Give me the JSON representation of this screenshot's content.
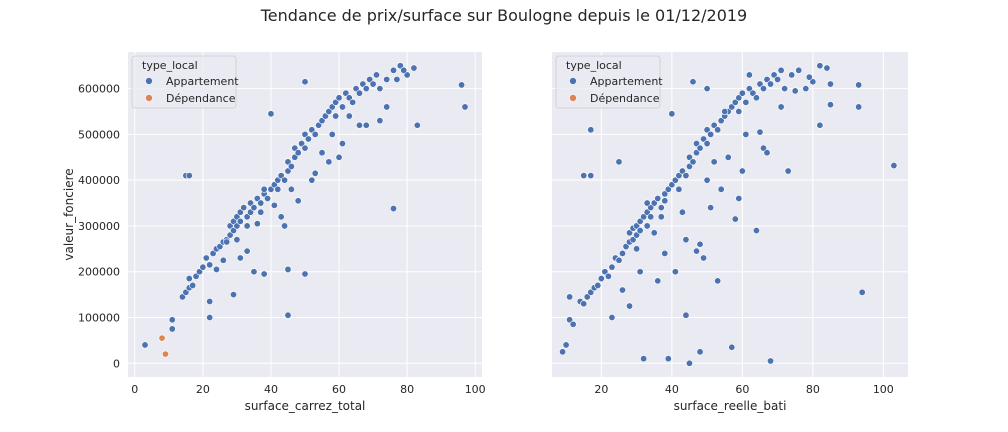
{
  "suptitle": "Tendance de prix/surface sur Boulogne depuis le 01/12/2019",
  "colors": {
    "Appartement": "#4c72b0",
    "Dépendance": "#dd8452",
    "panel_bg": "#eaeaf2",
    "grid": "#ffffff"
  },
  "chart_data": [
    {
      "type": "scatter",
      "xlabel": "surface_carrez_total",
      "ylabel": "valeur_fonciere",
      "xlim": [
        -2,
        102
      ],
      "ylim": [
        -30000,
        680000
      ],
      "xticks": [
        0,
        20,
        40,
        60,
        80,
        100
      ],
      "yticks": [
        0,
        100000,
        200000,
        300000,
        400000,
        500000,
        600000
      ],
      "grid": true,
      "legend": {
        "title": "type_local",
        "placement": "top-left",
        "entries": [
          "Appartement",
          "Dépendance"
        ]
      },
      "series": [
        {
          "name": "Appartement",
          "x": [
            3,
            11,
            11,
            14,
            15,
            16,
            16,
            17,
            18,
            19,
            20,
            21,
            22,
            23,
            24,
            25,
            26,
            27,
            28,
            28,
            29,
            29,
            30,
            30,
            31,
            31,
            32,
            33,
            33,
            34,
            34,
            35,
            36,
            37,
            37,
            38,
            38,
            39,
            40,
            41,
            42,
            42,
            43,
            44,
            45,
            45,
            46,
            47,
            47,
            48,
            49,
            50,
            50,
            51,
            52,
            53,
            54,
            55,
            56,
            57,
            58,
            59,
            59,
            60,
            61,
            62,
            63,
            64,
            65,
            66,
            67,
            68,
            69,
            70,
            71,
            72,
            74,
            76,
            78,
            80,
            82,
            96,
            97,
            15,
            16,
            40,
            50,
            76,
            45,
            50,
            22,
            22,
            29,
            35,
            45,
            60,
            83,
            27,
            33,
            43,
            55,
            58,
            63,
            66,
            72,
            79,
            31,
            38,
            44,
            48,
            52,
            57,
            24,
            26,
            30,
            36,
            41,
            46,
            53,
            61,
            68,
            74,
            77
          ],
          "y": [
            40000,
            75000,
            95000,
            145000,
            155000,
            165000,
            185000,
            170000,
            190000,
            200000,
            210000,
            230000,
            215000,
            240000,
            250000,
            255000,
            265000,
            270000,
            280000,
            300000,
            290000,
            310000,
            320000,
            300000,
            330000,
            310000,
            340000,
            320000,
            300000,
            330000,
            350000,
            340000,
            360000,
            350000,
            330000,
            370000,
            380000,
            360000,
            380000,
            390000,
            400000,
            380000,
            410000,
            400000,
            420000,
            440000,
            430000,
            450000,
            470000,
            460000,
            480000,
            470000,
            500000,
            490000,
            510000,
            500000,
            520000,
            530000,
            540000,
            550000,
            560000,
            570000,
            540000,
            580000,
            560000,
            590000,
            580000,
            570000,
            600000,
            590000,
            610000,
            600000,
            620000,
            610000,
            630000,
            600000,
            620000,
            640000,
            650000,
            630000,
            645000,
            608000,
            560000,
            410000,
            410000,
            545000,
            615000,
            338000,
            105000,
            195000,
            100000,
            135000,
            150000,
            200000,
            205000,
            450000,
            520000,
            265000,
            245000,
            320000,
            460000,
            500000,
            540000,
            520000,
            530000,
            640000,
            230000,
            195000,
            300000,
            355000,
            400000,
            440000,
            205000,
            225000,
            270000,
            305000,
            345000,
            380000,
            415000,
            480000,
            520000,
            560000,
            620000
          ]
        },
        {
          "name": "Dépendance",
          "x": [
            8,
            9
          ],
          "y": [
            55000,
            20000
          ]
        }
      ]
    },
    {
      "type": "scatter",
      "xlabel": "surface_reelle_bati",
      "ylabel": "",
      "xlim": [
        6,
        107
      ],
      "ylim": [
        -30000,
        680000
      ],
      "xticks": [
        20,
        40,
        60,
        80,
        100
      ],
      "yticks": [
        0,
        100000,
        200000,
        300000,
        400000,
        500000,
        600000
      ],
      "grid": true,
      "legend": {
        "title": "type_local",
        "placement": "top-left",
        "entries": [
          "Appartement",
          "Dépendance"
        ]
      },
      "series": [
        {
          "name": "Appartement",
          "x": [
            9,
            11,
            11,
            12,
            14,
            15,
            16,
            17,
            18,
            19,
            20,
            21,
            22,
            23,
            24,
            25,
            26,
            27,
            28,
            28,
            29,
            29,
            30,
            30,
            31,
            31,
            32,
            33,
            33,
            34,
            34,
            35,
            36,
            37,
            37,
            38,
            38,
            39,
            40,
            41,
            42,
            42,
            43,
            44,
            45,
            45,
            46,
            47,
            47,
            48,
            49,
            50,
            50,
            51,
            52,
            53,
            54,
            55,
            56,
            57,
            58,
            59,
            59,
            60,
            61,
            62,
            63,
            64,
            65,
            66,
            67,
            68,
            69,
            70,
            71,
            72,
            74,
            76,
            78,
            80,
            82,
            84,
            85,
            93,
            93,
            94,
            103,
            10,
            15,
            17,
            17,
            25,
            32,
            39,
            41,
            44,
            45,
            47,
            48,
            49,
            50,
            53,
            57,
            58,
            59,
            62,
            64,
            65,
            68,
            73,
            82,
            85,
            40,
            46,
            50,
            52,
            55,
            28,
            31,
            33,
            36,
            43,
            48,
            56,
            61,
            66,
            71,
            75,
            79,
            23,
            26,
            30,
            35,
            38,
            44,
            51,
            54,
            60,
            67
          ],
          "y": [
            25000,
            145000,
            95000,
            85000,
            135000,
            130000,
            145000,
            155000,
            165000,
            170000,
            185000,
            200000,
            190000,
            210000,
            230000,
            225000,
            240000,
            255000,
            265000,
            285000,
            270000,
            295000,
            300000,
            280000,
            310000,
            290000,
            320000,
            330000,
            300000,
            340000,
            320000,
            350000,
            360000,
            340000,
            320000,
            370000,
            355000,
            380000,
            390000,
            400000,
            410000,
            380000,
            420000,
            410000,
            430000,
            450000,
            440000,
            460000,
            480000,
            470000,
            490000,
            480000,
            510000,
            500000,
            520000,
            510000,
            530000,
            540000,
            550000,
            560000,
            570000,
            580000,
            550000,
            590000,
            570000,
            600000,
            590000,
            580000,
            610000,
            600000,
            620000,
            610000,
            630000,
            620000,
            640000,
            600000,
            630000,
            640000,
            600000,
            615000,
            650000,
            645000,
            610000,
            608000,
            560000,
            155000,
            432000,
            40000,
            410000,
            510000,
            410000,
            440000,
            10000,
            10000,
            200000,
            105000,
            0,
            245000,
            25000,
            230000,
            400000,
            180000,
            35000,
            315000,
            360000,
            630000,
            290000,
            505000,
            5000,
            420000,
            520000,
            565000,
            545000,
            615000,
            600000,
            440000,
            550000,
            125000,
            200000,
            350000,
            180000,
            330000,
            260000,
            450000,
            500000,
            470000,
            560000,
            595000,
            625000,
            100000,
            160000,
            250000,
            285000,
            240000,
            270000,
            340000,
            380000,
            420000,
            460000
          ]
        },
        {
          "name": "Dépendance",
          "x": [],
          "y": []
        }
      ]
    }
  ]
}
